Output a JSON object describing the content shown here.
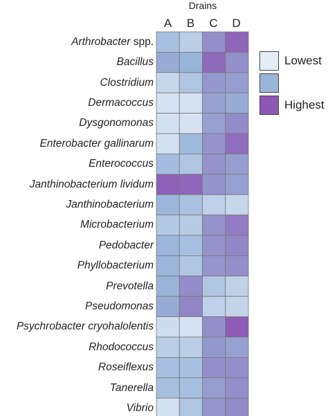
{
  "chart_data": {
    "type": "heatmap",
    "title": "Drains",
    "columns": [
      "A",
      "B",
      "C",
      "D"
    ],
    "rows": [
      {
        "name": "Arthrobacter",
        "suffix": " spp."
      },
      {
        "name": "Bacillus"
      },
      {
        "name": "Clostridium"
      },
      {
        "name": "Dermacoccus"
      },
      {
        "name": "Dysgonomonas"
      },
      {
        "name": "Enterobacter gallinarum"
      },
      {
        "name": "Enterococcus"
      },
      {
        "name": "Janthinobacterium lividum"
      },
      {
        "name": "Janthinobacterium"
      },
      {
        "name": "Microbacterium"
      },
      {
        "name": "Pedobacter"
      },
      {
        "name": "Phyllobacterium"
      },
      {
        "name": "Prevotella"
      },
      {
        "name": "Pseudomonas"
      },
      {
        "name": "Psychrobacter cryohalolentis"
      },
      {
        "name": "Rhodococcus"
      },
      {
        "name": "Roseiflexus"
      },
      {
        "name": "Tanerella"
      },
      {
        "name": "Vibrio"
      }
    ],
    "values": [
      [
        0.4,
        0.28,
        0.7,
        0.92
      ],
      [
        0.55,
        0.5,
        0.9,
        0.7
      ],
      [
        0.2,
        0.35,
        0.65,
        0.62
      ],
      [
        0.1,
        0.1,
        0.6,
        0.55
      ],
      [
        0.12,
        0.1,
        0.6,
        0.72
      ],
      [
        0.12,
        0.45,
        0.68,
        0.88
      ],
      [
        0.42,
        0.35,
        0.68,
        0.62
      ],
      [
        0.95,
        0.92,
        0.68,
        0.6
      ],
      [
        0.48,
        0.38,
        0.25,
        0.2
      ],
      [
        0.32,
        0.3,
        0.68,
        0.8
      ],
      [
        0.48,
        0.4,
        0.68,
        0.75
      ],
      [
        0.48,
        0.35,
        0.66,
        0.7
      ],
      [
        0.5,
        0.72,
        0.35,
        0.25
      ],
      [
        0.55,
        0.75,
        0.25,
        0.22
      ],
      [
        0.15,
        0.1,
        0.7,
        0.98
      ],
      [
        0.28,
        0.28,
        0.65,
        0.6
      ],
      [
        0.4,
        0.4,
        0.7,
        0.7
      ],
      [
        0.4,
        0.4,
        0.62,
        0.7
      ],
      [
        0.12,
        0.35,
        0.66,
        0.72
      ]
    ],
    "scale": {
      "low_label": "Lowest",
      "mid_label": "",
      "high_label": "Highest"
    },
    "colors": {
      "low": "#e5eef7",
      "mid": "#98b4d9",
      "high": "#8e57b4",
      "border": "#777777"
    },
    "legend_position": "right"
  },
  "legend": {
    "items": [
      {
        "label": "Lowest",
        "color": "#e5eef7"
      },
      {
        "label": "",
        "color": "#98b4d9"
      },
      {
        "label": "Highest",
        "color": "#8e57b4"
      }
    ]
  }
}
